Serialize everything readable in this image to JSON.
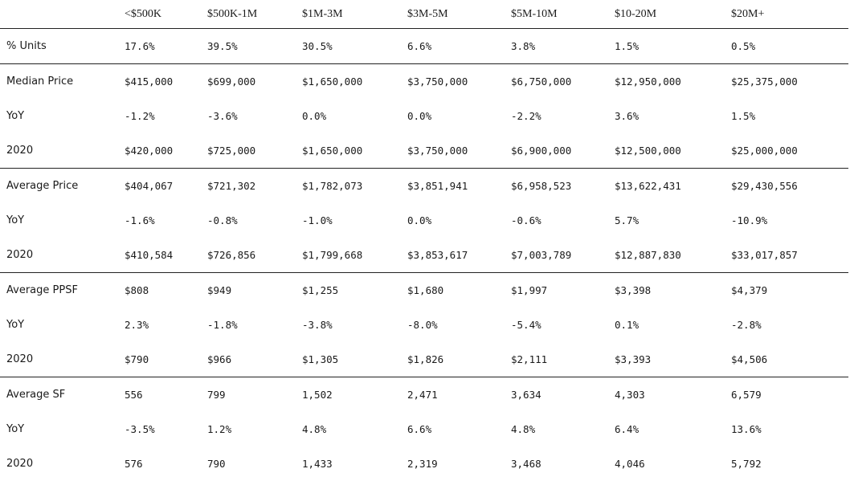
{
  "table": {
    "columns": [
      "<$500K",
      "$500K-1M",
      "$1M-3M",
      "$3M-5M",
      "$5M-10M",
      "$10-20M",
      "$20M+"
    ],
    "groups": [
      [
        [
          "% Units",
          "17.6%",
          "39.5%",
          "30.5%",
          "6.6%",
          "3.8%",
          "1.5%",
          "0.5%"
        ]
      ],
      [
        [
          "Median Price",
          "$415,000",
          "$699,000",
          "$1,650,000",
          "$3,750,000",
          "$6,750,000",
          "$12,950,000",
          "$25,375,000"
        ],
        [
          "YoY",
          "-1.2%",
          "-3.6%",
          "0.0%",
          "0.0%",
          "-2.2%",
          "3.6%",
          "1.5%"
        ],
        [
          "2020",
          "$420,000",
          "$725,000",
          "$1,650,000",
          "$3,750,000",
          "$6,900,000",
          "$12,500,000",
          "$25,000,000"
        ]
      ],
      [
        [
          "Average Price",
          "$404,067",
          "$721,302",
          "$1,782,073",
          "$3,851,941",
          "$6,958,523",
          "$13,622,431",
          "$29,430,556"
        ],
        [
          "YoY",
          "-1.6%",
          "-0.8%",
          "-1.0%",
          "0.0%",
          "-0.6%",
          "5.7%",
          "-10.9%"
        ],
        [
          "2020",
          "$410,584",
          "$726,856",
          "$1,799,668",
          "$3,853,617",
          "$7,003,789",
          "$12,887,830",
          "$33,017,857"
        ]
      ],
      [
        [
          "Average PPSF",
          "$808",
          "$949",
          "$1,255",
          "$1,680",
          "$1,997",
          "$3,398",
          "$4,379"
        ],
        [
          "YoY",
          "2.3%",
          "-1.8%",
          "-3.8%",
          "-8.0%",
          "-5.4%",
          "0.1%",
          "-2.8%"
        ],
        [
          "2020",
          "$790",
          "$966",
          "$1,305",
          "$1,826",
          "$2,111",
          "$3,393",
          "$4,506"
        ]
      ],
      [
        [
          "Average SF",
          "556",
          "799",
          "1,502",
          "2,471",
          "3,634",
          "4,303",
          "6,579"
        ],
        [
          "YoY",
          "-3.5%",
          "1.2%",
          "4.8%",
          "6.6%",
          "4.8%",
          "6.4%",
          "13.6%"
        ],
        [
          "2020",
          "576",
          "790",
          "1,433",
          "2,319",
          "3,468",
          "4,046",
          "5,792"
        ]
      ]
    ]
  }
}
